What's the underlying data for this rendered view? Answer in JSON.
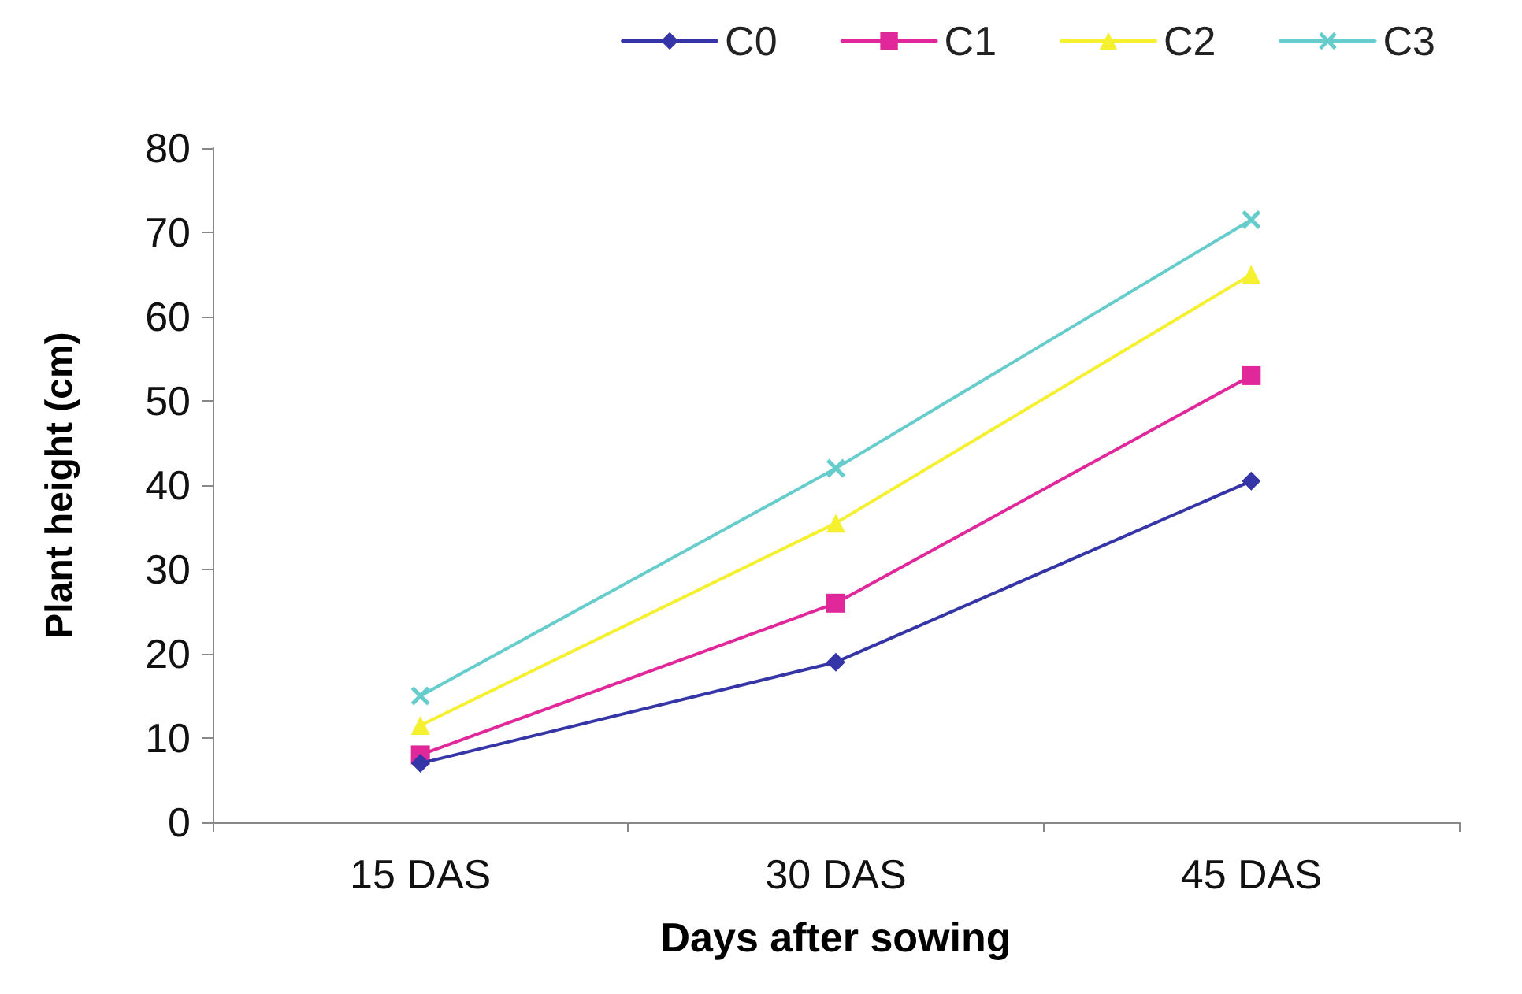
{
  "chart_data": {
    "type": "line",
    "xlabel": "Days after sowing",
    "ylabel": "Plant height (cm)",
    "categories": [
      "15 DAS",
      "30 DAS",
      "45 DAS"
    ],
    "series": [
      {
        "name": "C0",
        "color": "#3535a8",
        "marker": "diamond",
        "values": [
          7,
          19,
          40.5
        ]
      },
      {
        "name": "C1",
        "color": "#e0289a",
        "marker": "square",
        "values": [
          8,
          26,
          53
        ]
      },
      {
        "name": "C2",
        "color": "#f5f030",
        "marker": "triangle",
        "values": [
          11.5,
          35.5,
          65
        ]
      },
      {
        "name": "C3",
        "color": "#66cccc",
        "marker": "cross",
        "values": [
          15,
          42,
          71.5
        ]
      }
    ],
    "ylim": [
      0,
      80
    ],
    "yticks": [
      0,
      10,
      20,
      30,
      40,
      50,
      60,
      70,
      80
    ],
    "grid": false,
    "legend": "top right",
    "line_style": "solid"
  }
}
